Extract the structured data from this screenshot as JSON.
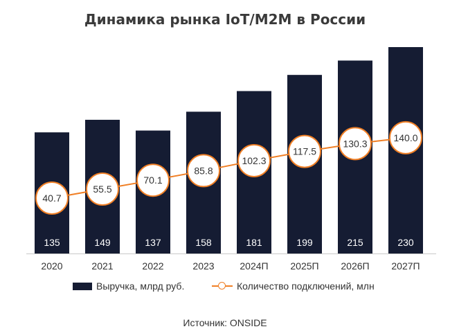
{
  "colors": {
    "bar": "#151c33",
    "line": "#f07f25",
    "title": "#3a3a3a",
    "axis": "#c8c8c8"
  },
  "chart_data": {
    "type": "bar",
    "title": "Динамика рынка IoT/M2M в России",
    "categories": [
      "2020",
      "2021",
      "2022",
      "2023",
      "2024П",
      "2025П",
      "2026П",
      "2027П"
    ],
    "series": [
      {
        "name": "Выручка, млрд руб.",
        "type": "bar",
        "values": [
          135,
          149,
          137,
          158,
          181,
          199,
          215,
          230
        ]
      },
      {
        "name": "Количество подключений, млн",
        "type": "line",
        "values": [
          40.7,
          55.5,
          70.1,
          85.8,
          102.3,
          117.5,
          130.3,
          140.0
        ]
      }
    ],
    "value_labels": {
      "bars": [
        "135",
        "149",
        "137",
        "158",
        "181",
        "199",
        "215",
        "230"
      ],
      "line": [
        "40.7",
        "55.5",
        "70.1",
        "85.8",
        "102.3",
        "117.5",
        "130.3",
        "140.0"
      ]
    },
    "legend_position": "bottom",
    "grid": false
  },
  "source": "Источник: ONSIDE"
}
